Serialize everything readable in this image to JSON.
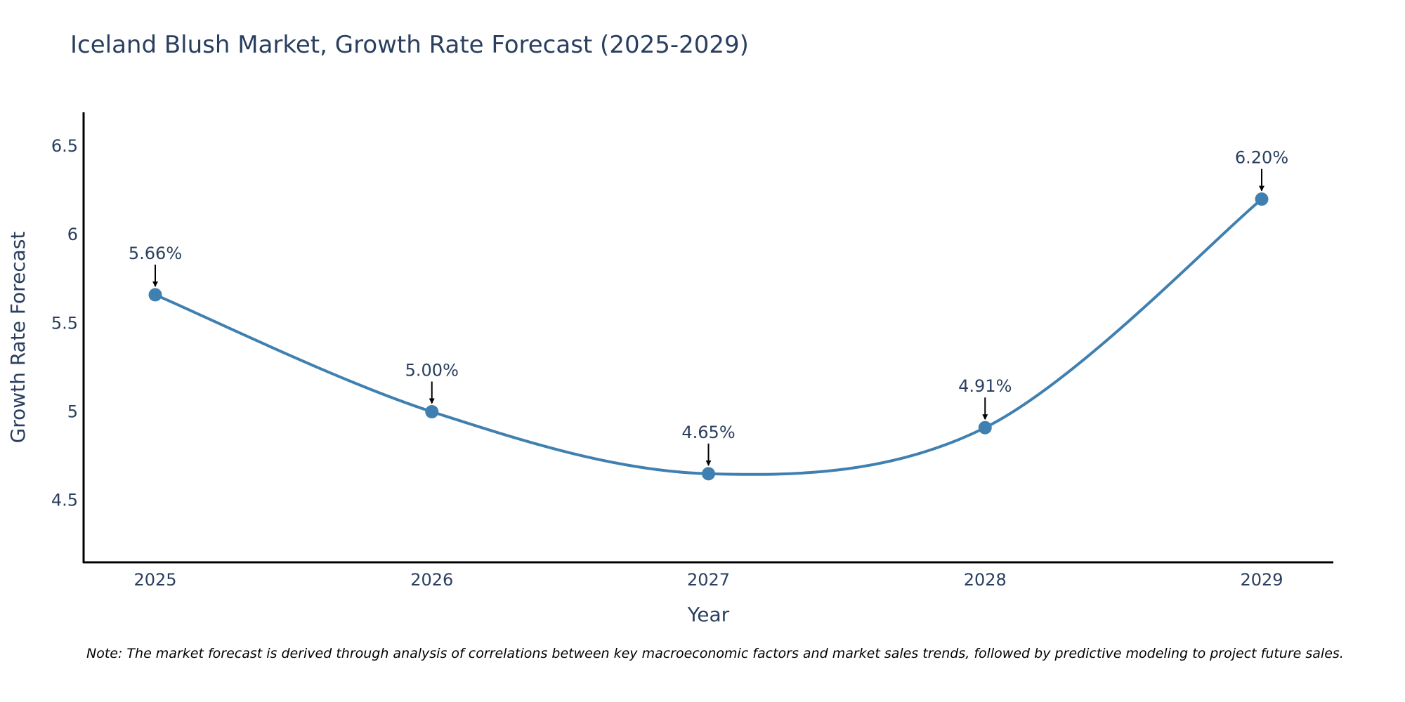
{
  "chart_data": {
    "type": "line",
    "title": "Iceland Blush Market, Growth Rate Forecast (2025-2029)",
    "xlabel": "Year",
    "ylabel": "Growth Rate Forecast",
    "categories": [
      "2025",
      "2026",
      "2027",
      "2028",
      "2029"
    ],
    "values": [
      5.66,
      5.0,
      4.65,
      4.91,
      6.2
    ],
    "data_labels": [
      "5.66%",
      "5.00%",
      "4.65%",
      "4.91%",
      "6.20%"
    ],
    "ylim": [
      4.15,
      6.69
    ],
    "yticks": [
      4.5,
      5,
      5.5,
      6,
      6.5
    ],
    "ytick_labels": [
      "4.5",
      "5",
      "5.5",
      "6",
      "6.5"
    ],
    "grid": false,
    "line_shape": "spline",
    "series_color": "#4080b0",
    "axis_color": "#000000"
  },
  "note": "Note: The market forecast is derived through analysis of correlations between key macroeconomic factors and market sales trends, followed by predictive modeling to project future sales."
}
